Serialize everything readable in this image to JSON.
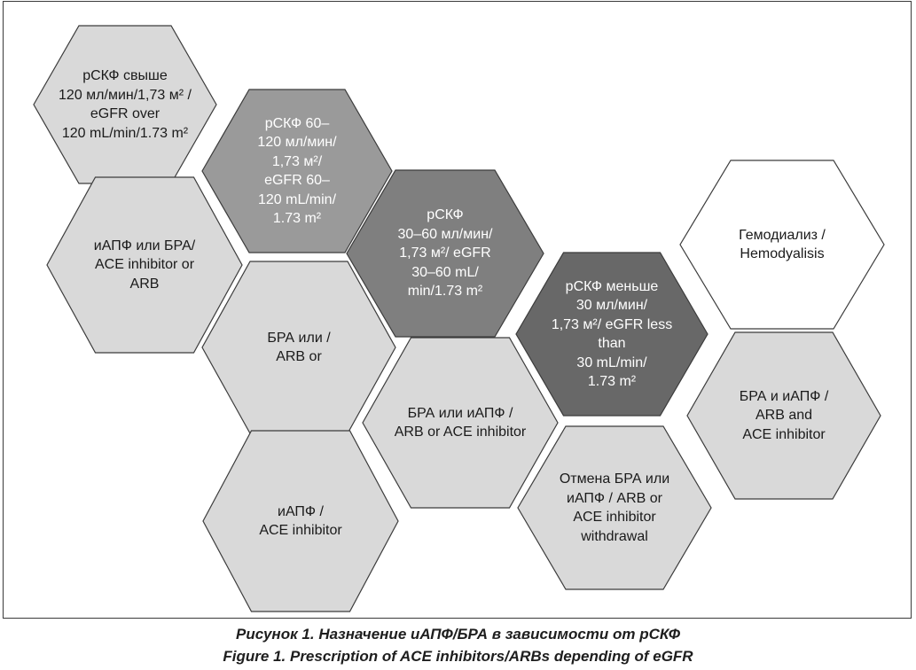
{
  "hexagons": {
    "egfr_over_120": {
      "text": "рСКФ свыше\n120 мл/мин/1,73 м² /\neGFR over\n120 mL/min/1.73 m²",
      "fill": "#d9d9d9",
      "stroke": "#3c3c3c"
    },
    "egfr_60_120": {
      "text": "рСКФ 60–\n120 мл/мин/\n1,73 м²/\neGFR 60–\n120 mL/min/\n1.73 m²",
      "fill": "#9a9a9a",
      "stroke": "#3c3c3c"
    },
    "egfr_30_60": {
      "text": "рСКФ\n30–60 мл/мин/\n1,73 м²/ eGFR\n30–60 mL/\nmin/1.73 m²",
      "fill": "#7f7f7f",
      "stroke": "#3c3c3c"
    },
    "egfr_less_30": {
      "text": "рСКФ меньше\n30 мл/мин/\n1,73 м²/ eGFR less\nthan\n30 mL/min/\n1.73 m²",
      "fill": "#686868",
      "stroke": "#3c3c3c"
    },
    "hemodialysis": {
      "text": "Гемодиализ /\nHemodyalisis",
      "fill": "#ffffff",
      "stroke": "#3c3c3c"
    },
    "ace_or_arb": {
      "text": "иАПФ или БРА/\nACE inhibitor or\nARB",
      "fill": "#d9d9d9",
      "stroke": "#3c3c3c"
    },
    "arb_or": {
      "text": "БРА или /\nARB or",
      "fill": "#d9d9d9",
      "stroke": "#3c3c3c"
    },
    "ace_only": {
      "text": "иАПФ /\nACE inhibitor",
      "fill": "#d9d9d9",
      "stroke": "#3c3c3c"
    },
    "arb_or_ace": {
      "text": "БРА или иАПФ /\nARB or ACE inhibitor",
      "fill": "#d9d9d9",
      "stroke": "#3c3c3c"
    },
    "withdrawal": {
      "text": "Отмена БРА или\nиАПФ / ARB or\nACE inhibitor\nwithdrawal",
      "fill": "#d9d9d9",
      "stroke": "#3c3c3c"
    },
    "arb_and_ace": {
      "text": "БРА и иАПФ /\nARB and\nACE inhibitor",
      "fill": "#d9d9d9",
      "stroke": "#3c3c3c"
    }
  },
  "caption": {
    "ru": "Рисунок 1. Назначение иАПФ/БРА в зависимости от рСКФ",
    "en": "Figure 1. Prescription of ACE inhibitors/ARBs depending of eGFR"
  }
}
